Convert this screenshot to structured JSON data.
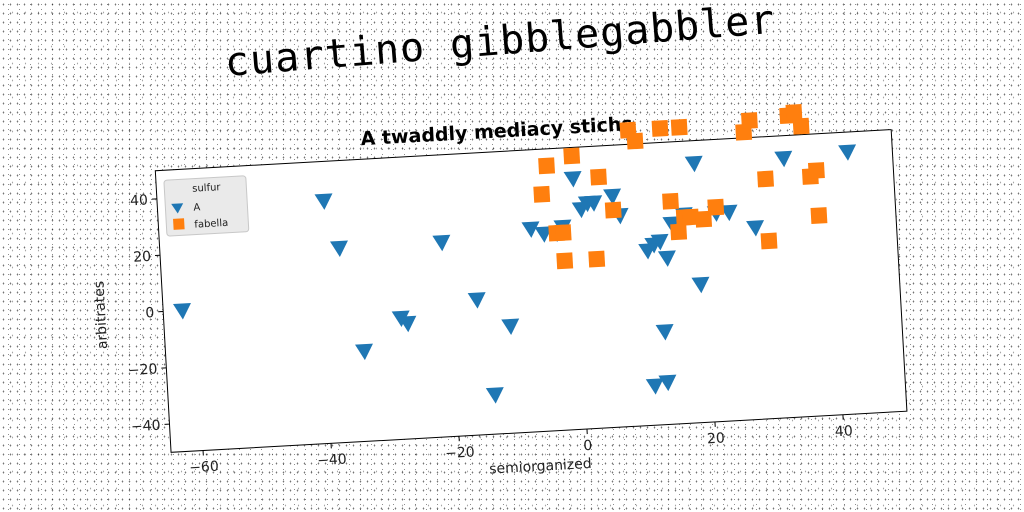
{
  "page_title": "cuartino gibblegabbler",
  "chart_data": {
    "type": "scatter",
    "title": "A twaddly mediacy stichs",
    "xlabel": "semiorganized",
    "ylabel": "arbitrates",
    "xlim": [
      -65,
      50
    ],
    "ylim": [
      -50,
      50
    ],
    "xticks": [
      -60,
      -40,
      -20,
      0,
      20,
      40
    ],
    "yticks": [
      -40,
      -20,
      0,
      20,
      40
    ],
    "tick_labels_x": [
      "−60",
      "−40",
      "−20",
      "0",
      "20",
      "40"
    ],
    "tick_labels_y": [
      "−40",
      "−20",
      "0",
      "20",
      "40"
    ],
    "grid": false,
    "legend": {
      "title": "sulfur",
      "placement": "top-left"
    },
    "series": [
      {
        "name": "A",
        "marker": "triangle-down",
        "color": "#1f77b4",
        "points": [
          [
            -62,
            0
          ],
          [
            -39,
            36
          ],
          [
            -37,
            19
          ],
          [
            -34,
            -18
          ],
          [
            -28,
            -7
          ],
          [
            -27,
            -9
          ],
          [
            -21,
            19
          ],
          [
            -16,
            -2
          ],
          [
            -11,
            -12
          ],
          [
            -14,
            -36
          ],
          [
            -7,
            22
          ],
          [
            -5,
            20
          ],
          [
            -3,
            20
          ],
          [
            -2,
            22
          ],
          [
            0,
            39
          ],
          [
            1,
            28
          ],
          [
            2,
            30
          ],
          [
            3,
            30
          ],
          [
            6,
            32
          ],
          [
            7,
            25
          ],
          [
            12,
            14
          ],
          [
            11,
            12
          ],
          [
            13,
            15
          ],
          [
            14,
            9
          ],
          [
            13,
            -17
          ],
          [
            11,
            -36
          ],
          [
            13,
            -35
          ],
          [
            15,
            21
          ],
          [
            17,
            24
          ],
          [
            19,
            42
          ],
          [
            19,
            -1
          ],
          [
            22,
            24
          ],
          [
            24,
            24
          ],
          [
            28,
            18
          ],
          [
            33,
            42
          ],
          [
            43,
            43
          ]
        ]
      },
      {
        "name": "fabella",
        "marker": "square",
        "color": "#ff7f0e",
        "points": [
          [
            -4,
            44
          ],
          [
            -5,
            34
          ],
          [
            -3,
            20
          ],
          [
            -2,
            20
          ],
          [
            -2,
            10
          ],
          [
            0,
            47
          ],
          [
            3,
            10
          ],
          [
            4,
            39
          ],
          [
            6,
            27
          ],
          [
            9,
            55
          ],
          [
            10,
            51
          ],
          [
            14,
            55
          ],
          [
            17,
            55
          ],
          [
            15,
            29
          ],
          [
            16,
            18
          ],
          [
            17,
            23
          ],
          [
            18,
            23
          ],
          [
            20,
            22
          ],
          [
            22,
            26
          ],
          [
            27,
            52
          ],
          [
            28,
            56
          ],
          [
            30,
            13
          ],
          [
            30,
            35
          ],
          [
            34,
            57
          ],
          [
            35,
            58
          ],
          [
            36,
            53
          ],
          [
            37,
            35
          ],
          [
            38,
            37
          ],
          [
            38,
            21
          ]
        ]
      }
    ]
  }
}
